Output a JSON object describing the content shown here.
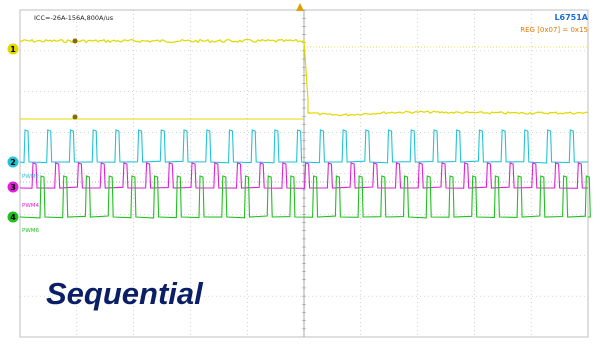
{
  "chart_data": {
    "type": "line",
    "title": "",
    "header_left": "ICC=-26A-156A,800A/us",
    "header_right_top": "L6751A",
    "header_right_bottom": "REG [0x07] = 0x15",
    "caption": "Sequential",
    "xlabel": "",
    "ylabel": "",
    "grid": true,
    "grid_divisions": {
      "x": 10,
      "y": 8
    },
    "channels": [
      {
        "id": "1",
        "name": "",
        "color": "#e0d800",
        "label": ""
      },
      {
        "id": "2",
        "name": "",
        "color": "#22c4d6",
        "label": "PWM2"
      },
      {
        "id": "3",
        "name": "",
        "color": "#e020d8",
        "label": "PWM4"
      },
      {
        "id": "4",
        "name": "",
        "color": "#20c020",
        "label": "PWM6"
      }
    ],
    "trigger_position_fraction": 0.5,
    "channel1_levels": {
      "before_trigger": 0.85,
      "after_trigger_min": 0.7,
      "after_trigger_settle": 0.73
    },
    "pwm_pulse_period_divisions": 0.4
  },
  "colors": {
    "grid": "#b0b0b0",
    "marker_orange": "#e0a000",
    "caption": "#0a1f66",
    "header_blue": "#1f6fd1",
    "header_orange": "#e07a00"
  }
}
